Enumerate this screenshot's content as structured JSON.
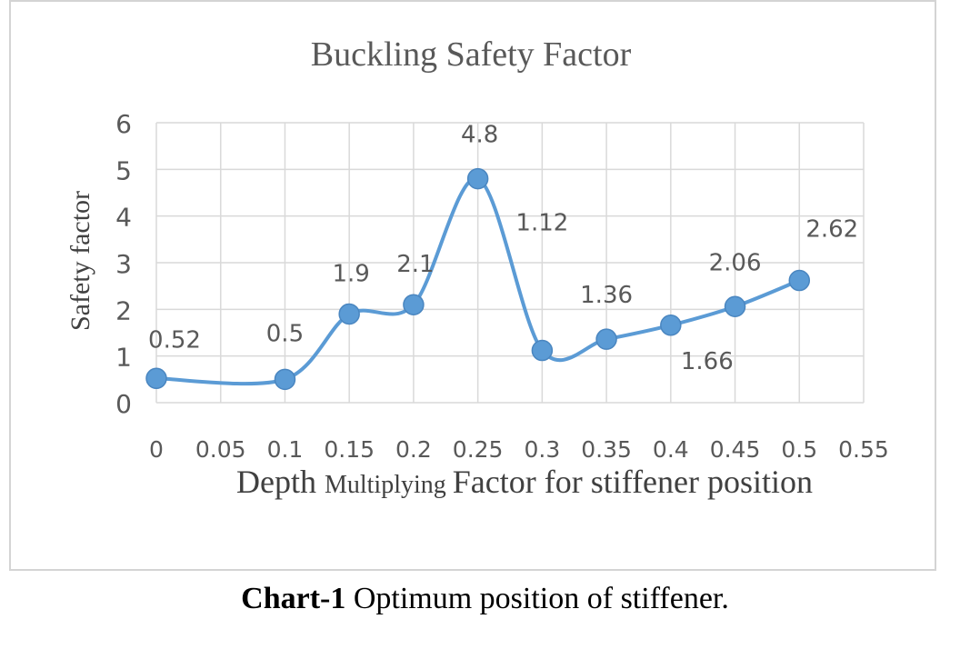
{
  "chart_data": {
    "type": "line",
    "title": "Buckling Safety Factor",
    "xlabel_parts": [
      "Depth ",
      "Multiplying ",
      "Factor for stiffener position"
    ],
    "ylabel": "Safety factor",
    "x_ticks": [
      "0",
      "0.05",
      "0.1",
      "0.15",
      "0.2",
      "0.25",
      "0.3",
      "0.35",
      "0.4",
      "0.45",
      "0.5",
      "0.55"
    ],
    "y_ticks": [
      "0",
      "1",
      "2",
      "3",
      "4",
      "5",
      "6"
    ],
    "xlim": [
      0,
      0.55
    ],
    "ylim": [
      0,
      6
    ],
    "grid": true,
    "series": [
      {
        "color": "#5b9bd5",
        "points": [
          {
            "x": 0,
            "y": 0.52,
            "label": "0.52"
          },
          {
            "x": 0.1,
            "y": 0.5,
            "label": "0.5"
          },
          {
            "x": 0.15,
            "y": 1.9,
            "label": "1.9"
          },
          {
            "x": 0.2,
            "y": 2.1,
            "label": "2.1"
          },
          {
            "x": 0.25,
            "y": 4.8,
            "label": "4.8"
          },
          {
            "x": 0.3,
            "y": 1.12,
            "label": "1.12"
          },
          {
            "x": 0.35,
            "y": 1.36,
            "label": "1.36"
          },
          {
            "x": 0.4,
            "y": 1.66,
            "label": "1.66"
          },
          {
            "x": 0.45,
            "y": 2.06,
            "label": "2.06"
          },
          {
            "x": 0.5,
            "y": 2.62,
            "label": "2.62"
          }
        ]
      }
    ]
  },
  "caption": {
    "bold": "Chart-1",
    "text": " Optimum position of stiffener."
  }
}
